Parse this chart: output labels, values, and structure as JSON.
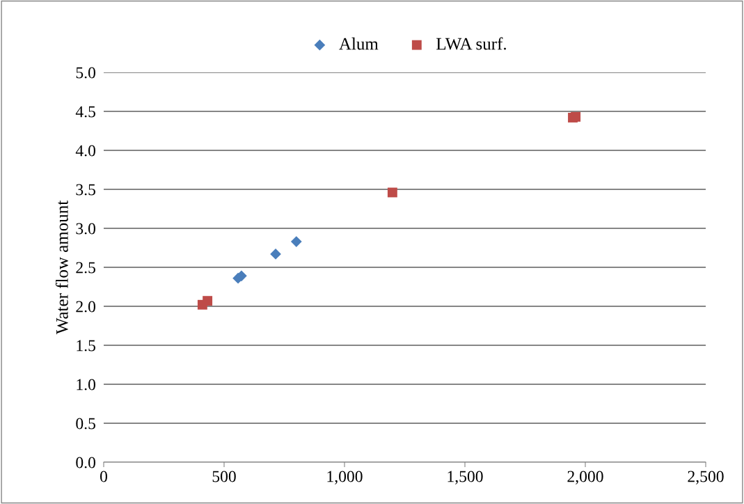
{
  "chart_data": {
    "type": "scatter",
    "ylabel": "Water flow amount",
    "xlim": [
      0,
      2500
    ],
    "xticks": [
      0,
      {
        "value": 500,
        "label": "500"
      },
      {
        "value": 1000,
        "label": "1,000"
      },
      {
        "value": 1500,
        "label": "1,500"
      },
      {
        "value": 2000,
        "label": "2,000"
      },
      {
        "value": 2500,
        "label": "2,500"
      }
    ],
    "ylim": [
      0,
      5
    ],
    "yticks": [
      {
        "value": 0,
        "label": "0.0"
      },
      {
        "value": 0.5,
        "label": "0.5"
      },
      {
        "value": 1,
        "label": "1.0"
      },
      {
        "value": 1.5,
        "label": "1.5"
      },
      {
        "value": 2,
        "label": "2.0"
      },
      {
        "value": 2.5,
        "label": "2.5"
      },
      {
        "value": 3,
        "label": "3.0"
      },
      {
        "value": 3.5,
        "label": "3.5"
      },
      {
        "value": 4,
        "label": "4.0"
      },
      {
        "value": 4.5,
        "label": "4.5"
      },
      {
        "value": 5,
        "label": "5.0"
      }
    ],
    "grid": "y",
    "legend": "top",
    "series": [
      {
        "name": "Alum",
        "color": "#4a7ebb",
        "marker": "diamond",
        "x": [
          558,
          572,
          714,
          800
        ],
        "values": [
          2.36,
          2.39,
          2.67,
          2.83
        ]
      },
      {
        "name": "LWA surf.",
        "color": "#be4b48",
        "marker": "square",
        "x": [
          410,
          431,
          1199,
          1948,
          1960
        ],
        "values": [
          2.02,
          2.07,
          3.46,
          4.42,
          4.43
        ]
      }
    ]
  }
}
